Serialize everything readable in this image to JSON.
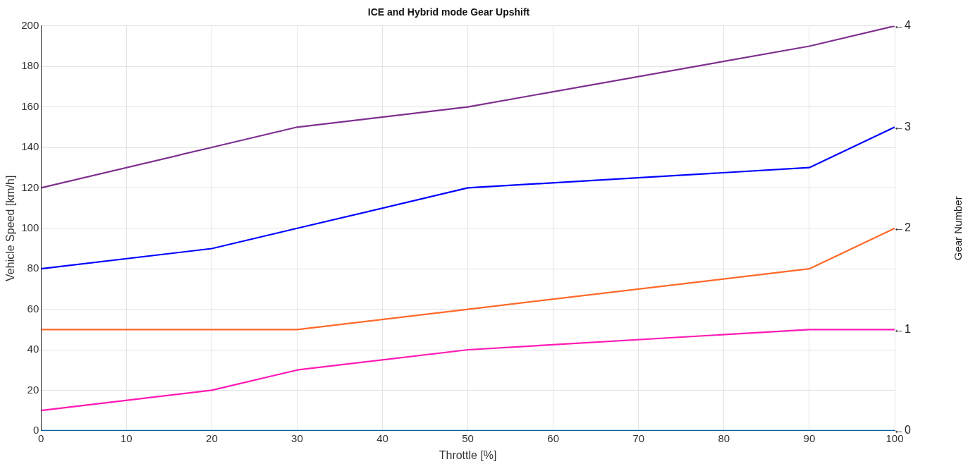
{
  "chart_data": {
    "type": "line",
    "title": "ICE and Hybrid mode Gear Upshift",
    "xlabel": "Throttle [%]",
    "ylabel": "Vehicle Speed [km/h]",
    "y2label": "Gear Number",
    "x": [
      0,
      20,
      30,
      50,
      90,
      100
    ],
    "series": [
      {
        "color": "#7e2f8e",
        "values": [
          120,
          140,
          150,
          160,
          190,
          200
        ]
      },
      {
        "color": "#0000ff",
        "values": [
          80,
          90,
          100,
          120,
          130,
          150
        ]
      },
      {
        "color": "#ff6929",
        "values": [
          50,
          50,
          50,
          60,
          80,
          100
        ]
      },
      {
        "color": "#ff19b4",
        "values": [
          10,
          20,
          30,
          40,
          50,
          50
        ]
      },
      {
        "color": "#0072bd",
        "values": [
          0,
          0,
          0,
          0,
          0,
          0
        ]
      }
    ],
    "xlim": [
      0,
      100
    ],
    "xticks": [
      0,
      10,
      20,
      30,
      40,
      50,
      60,
      70,
      80,
      90,
      100
    ],
    "ylim": [
      0,
      200
    ],
    "yticks": [
      0,
      20,
      40,
      60,
      80,
      100,
      120,
      140,
      160,
      180,
      200
    ],
    "grid": true,
    "legend": false,
    "marker": "none",
    "line_style": "solid",
    "annotations": [
      "←4",
      "←3",
      "←2",
      "←1",
      "←0"
    ]
  }
}
